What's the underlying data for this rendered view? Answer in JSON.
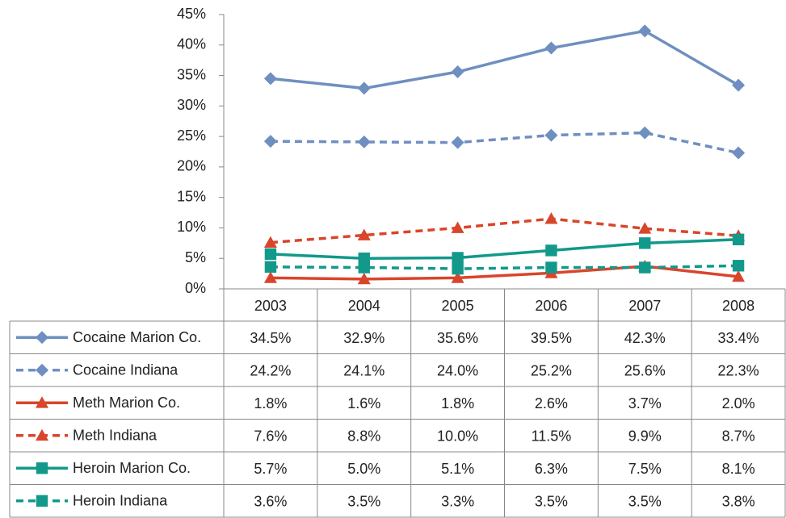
{
  "chart_data": {
    "type": "line",
    "categories": [
      "2003",
      "2004",
      "2005",
      "2006",
      "2007",
      "2008"
    ],
    "ylim": [
      0,
      45
    ],
    "yticks": [
      {
        "value": 0,
        "label": "0%"
      },
      {
        "value": 5,
        "label": "5%"
      },
      {
        "value": 10,
        "label": "10%"
      },
      {
        "value": 15,
        "label": "15%"
      },
      {
        "value": 20,
        "label": "20%"
      },
      {
        "value": 25,
        "label": "25%"
      },
      {
        "value": 30,
        "label": "30%"
      },
      {
        "value": 35,
        "label": "35%"
      },
      {
        "value": 40,
        "label": "40%"
      },
      {
        "value": 45,
        "label": "45%"
      }
    ],
    "grid": false,
    "series": [
      {
        "name": "Cocaine Marion Co.",
        "color": "#6f8fc0",
        "marker": "diamond",
        "dashed": false,
        "values": [
          34.5,
          32.9,
          35.6,
          39.5,
          42.3,
          33.4
        ],
        "value_labels": [
          "34.5%",
          "32.9%",
          "35.6%",
          "39.5%",
          "42.3%",
          "33.4%"
        ]
      },
      {
        "name": "Cocaine Indiana",
        "color": "#6f8fc0",
        "marker": "diamond",
        "dashed": true,
        "values": [
          24.2,
          24.1,
          24.0,
          25.2,
          25.6,
          22.3
        ],
        "value_labels": [
          "24.2%",
          "24.1%",
          "24.0%",
          "25.2%",
          "25.6%",
          "22.3%"
        ]
      },
      {
        "name": "Meth Marion Co.",
        "color": "#d9452b",
        "marker": "triangle",
        "dashed": false,
        "values": [
          1.8,
          1.6,
          1.8,
          2.6,
          3.7,
          2.0
        ],
        "value_labels": [
          "1.8%",
          "1.6%",
          "1.8%",
          "2.6%",
          "3.7%",
          "2.0%"
        ]
      },
      {
        "name": "Meth Indiana",
        "color": "#d9452b",
        "marker": "triangle",
        "dashed": true,
        "values": [
          7.6,
          8.8,
          10.0,
          11.5,
          9.9,
          8.7
        ],
        "value_labels": [
          "7.6%",
          "8.8%",
          "10.0%",
          "11.5%",
          "9.9%",
          "8.7%"
        ]
      },
      {
        "name": "Heroin Marion Co.",
        "color": "#12998a",
        "marker": "square",
        "dashed": false,
        "values": [
          5.7,
          5.0,
          5.1,
          6.3,
          7.5,
          8.1
        ],
        "value_labels": [
          "5.7%",
          "5.0%",
          "5.1%",
          "6.3%",
          "7.5%",
          "8.1%"
        ]
      },
      {
        "name": "Heroin Indiana",
        "color": "#12998a",
        "marker": "square",
        "dashed": true,
        "values": [
          3.6,
          3.5,
          3.3,
          3.5,
          3.5,
          3.8
        ],
        "value_labels": [
          "3.6%",
          "3.5%",
          "3.3%",
          "3.5%",
          "3.5%",
          "3.8%"
        ]
      }
    ]
  }
}
